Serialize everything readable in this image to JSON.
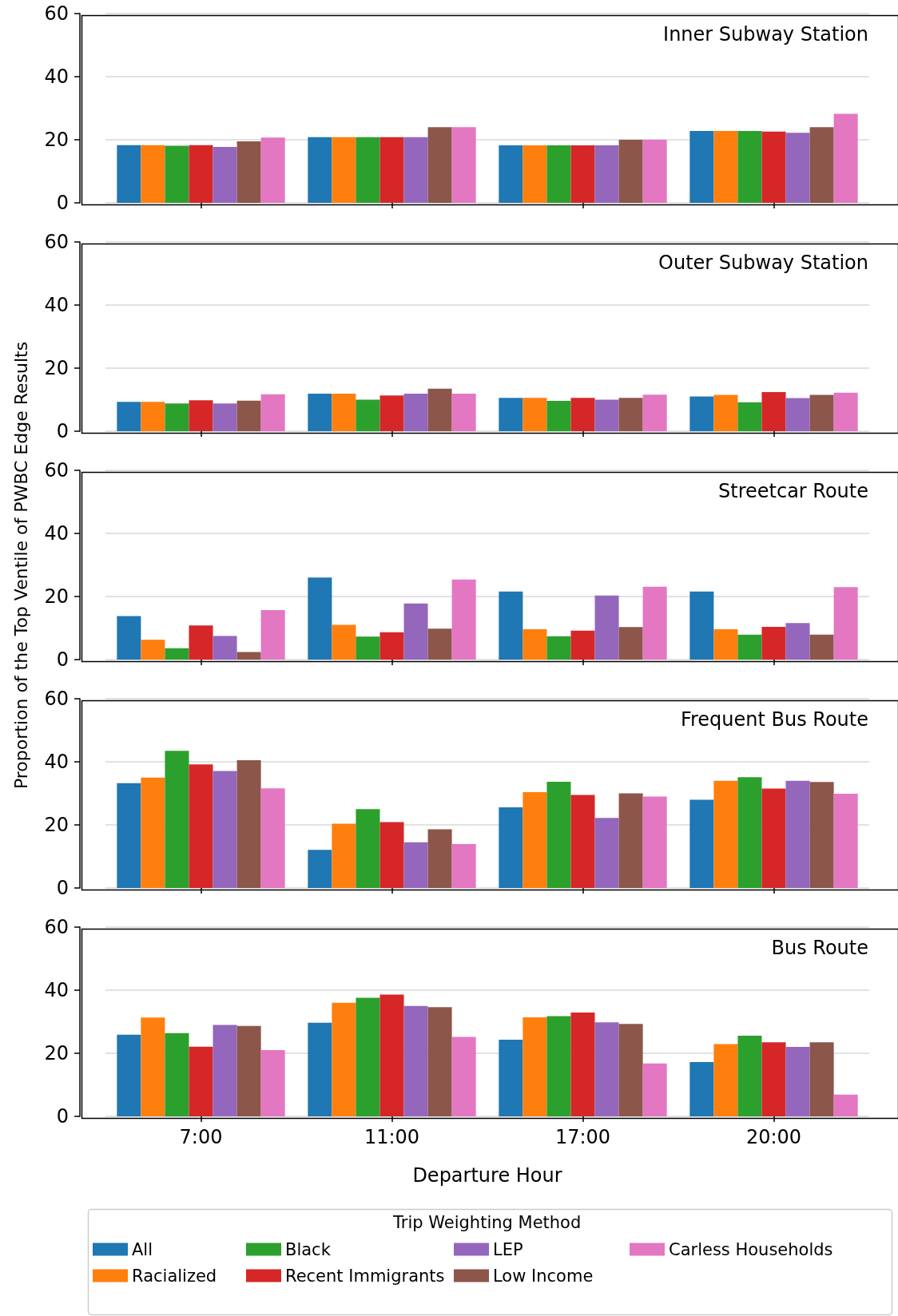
{
  "chart_data": [
    {
      "type": "bar",
      "title": "Inner Subway Station",
      "categories": [
        null,
        null,
        null,
        null
      ],
      "ylim": [
        0,
        60
      ],
      "yticks": [
        0,
        20,
        40,
        60
      ],
      "grid": "y",
      "tick_labels": "y",
      "series": [
        {
          "color": "#1f77b4",
          "values": [
            18.3,
            20.8,
            18.2,
            22.8
          ]
        },
        {
          "color": "#ff7f0e",
          "values": [
            18.3,
            20.8,
            18.2,
            22.8
          ]
        },
        {
          "color": "#2ca02c",
          "values": [
            18.1,
            20.8,
            18.2,
            22.8
          ]
        },
        {
          "color": "#d62728",
          "values": [
            18.3,
            20.8,
            18.2,
            22.6
          ]
        },
        {
          "color": "#9467bd",
          "values": [
            17.7,
            20.8,
            18.2,
            22.2
          ]
        },
        {
          "color": "#8c564b",
          "values": [
            19.5,
            24,
            20,
            24
          ]
        },
        {
          "color": "#e377c2",
          "values": [
            20.7,
            24,
            20,
            28.2
          ]
        }
      ]
    },
    {
      "type": "bar",
      "title": "Outer Subway Station",
      "categories": [
        null,
        null,
        null,
        null
      ],
      "ylim": [
        0,
        60
      ],
      "yticks": [
        0,
        20,
        40,
        60
      ],
      "grid": "y",
      "tick_labels": "y",
      "series": [
        {
          "color": "#1f77b4",
          "values": [
            9.3,
            11.9,
            10.6,
            11
          ]
        },
        {
          "color": "#ff7f0e",
          "values": [
            9.3,
            11.9,
            10.6,
            11.5
          ]
        },
        {
          "color": "#2ca02c",
          "values": [
            8.8,
            10,
            9.6,
            9.2
          ]
        },
        {
          "color": "#d62728",
          "values": [
            9.8,
            11.3,
            10.6,
            12.4
          ]
        },
        {
          "color": "#9467bd",
          "values": [
            8.8,
            11.9,
            10,
            10.5
          ]
        },
        {
          "color": "#8c564b",
          "values": [
            9.7,
            13.5,
            10.6,
            11.5
          ]
        },
        {
          "color": "#e377c2",
          "values": [
            11.7,
            11.9,
            11.6,
            12.2
          ]
        }
      ]
    },
    {
      "type": "bar",
      "title": "Streetcar Route",
      "ylabel": "Proportion of the Top Ventile of PWBC Edge Results",
      "categories": [
        null,
        null,
        null,
        null
      ],
      "ylim": [
        0,
        60
      ],
      "yticks": [
        0,
        20,
        40,
        60
      ],
      "grid": "y",
      "tick_labels": "y",
      "series": [
        {
          "color": "#1f77b4",
          "values": [
            13.8,
            26,
            21.6,
            21.6
          ]
        },
        {
          "color": "#ff7f0e",
          "values": [
            6.3,
            11,
            9.6,
            9.6
          ]
        },
        {
          "color": "#2ca02c",
          "values": [
            3.6,
            7.3,
            7.4,
            7.9
          ]
        },
        {
          "color": "#d62728",
          "values": [
            10.8,
            8.7,
            9.2,
            10.4
          ]
        },
        {
          "color": "#9467bd",
          "values": [
            7.5,
            17.8,
            20.3,
            11.6
          ]
        },
        {
          "color": "#8c564b",
          "values": [
            2.4,
            9.8,
            10.3,
            7.9
          ]
        },
        {
          "color": "#e377c2",
          "values": [
            15.7,
            25.4,
            23.1,
            23
          ]
        }
      ]
    },
    {
      "type": "bar",
      "title": "Frequent Bus Route",
      "categories": [
        null,
        null,
        null,
        null
      ],
      "ylim": [
        0,
        60
      ],
      "yticks": [
        0,
        20,
        40,
        60
      ],
      "grid": "y",
      "tick_labels": "y",
      "series": [
        {
          "color": "#1f77b4",
          "values": [
            33.2,
            12.1,
            25.6,
            28
          ]
        },
        {
          "color": "#ff7f0e",
          "values": [
            35,
            20.4,
            30.4,
            34
          ]
        },
        {
          "color": "#2ca02c",
          "values": [
            43.5,
            25,
            33.7,
            35.1
          ]
        },
        {
          "color": "#d62728",
          "values": [
            39.2,
            20.9,
            29.5,
            31.5
          ]
        },
        {
          "color": "#9467bd",
          "values": [
            37.1,
            14.5,
            22.2,
            34
          ]
        },
        {
          "color": "#8c564b",
          "values": [
            40.5,
            18.6,
            30,
            33.6
          ]
        },
        {
          "color": "#e377c2",
          "values": [
            31.6,
            13.9,
            29,
            29.9
          ]
        }
      ]
    },
    {
      "type": "bar",
      "title": "Bus Route",
      "xlabel": "Departure Hour",
      "legend": "bottom",
      "legend_title": "Trip Weighting Method",
      "categories": [
        "7:00",
        "11:00",
        "17:00",
        "20:00"
      ],
      "ylim": [
        0,
        60
      ],
      "yticks": [
        0,
        20,
        40,
        60
      ],
      "grid": "y",
      "series": [
        {
          "name": "All",
          "color": "#1f77b4",
          "values": [
            25.9,
            29.7,
            24.3,
            17.2
          ]
        },
        {
          "name": "Racialized",
          "color": "#ff7f0e",
          "values": [
            31.3,
            36,
            31.4,
            22.9
          ]
        },
        {
          "name": "Black",
          "color": "#2ca02c",
          "values": [
            26.4,
            37.6,
            31.8,
            25.6
          ]
        },
        {
          "name": "Recent Immigrants",
          "color": "#d62728",
          "values": [
            22.1,
            38.6,
            32.9,
            23.5
          ]
        },
        {
          "name": "LEP",
          "color": "#9467bd",
          "values": [
            29,
            35,
            29.8,
            22
          ]
        },
        {
          "name": "Low Income",
          "color": "#8c564b",
          "values": [
            28.7,
            34.6,
            29.3,
            23.5
          ]
        },
        {
          "name": "Carless Households",
          "color": "#e377c2",
          "values": [
            21,
            25.2,
            16.8,
            6.9
          ]
        }
      ]
    }
  ]
}
